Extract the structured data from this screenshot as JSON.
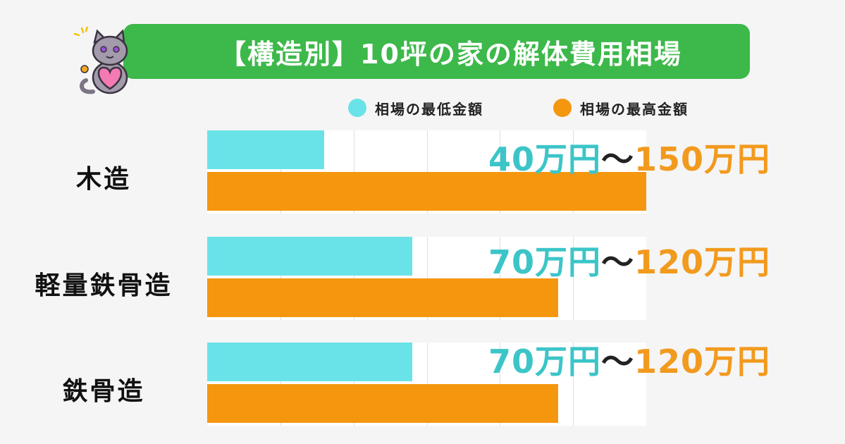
{
  "title": "【構造別】10坪の家の解体費用相場",
  "colors": {
    "title_bg": "#3db84a",
    "min": "#6ae3e8",
    "max": "#f5960f",
    "min_text": "#3cc5c8",
    "max_text": "#f29a1e"
  },
  "chart_data": {
    "type": "bar",
    "orientation": "horizontal",
    "categories": [
      "木造",
      "軽量鉄骨造",
      "鉄骨造"
    ],
    "series": [
      {
        "name": "相場の最低金額",
        "values": [
          40,
          70,
          70
        ]
      },
      {
        "name": "相場の最高金額",
        "values": [
          150,
          120,
          120
        ]
      }
    ],
    "unit": "万円",
    "legend_position": "top-right",
    "grid": true,
    "xlim": [
      0,
      150
    ],
    "range_labels": [
      {
        "low": "40万円",
        "sep": "〜",
        "high": "150万円"
      },
      {
        "low": "70万円",
        "sep": "〜",
        "high": "120万円"
      },
      {
        "low": "70万円",
        "sep": "〜",
        "high": "120万円"
      }
    ]
  }
}
